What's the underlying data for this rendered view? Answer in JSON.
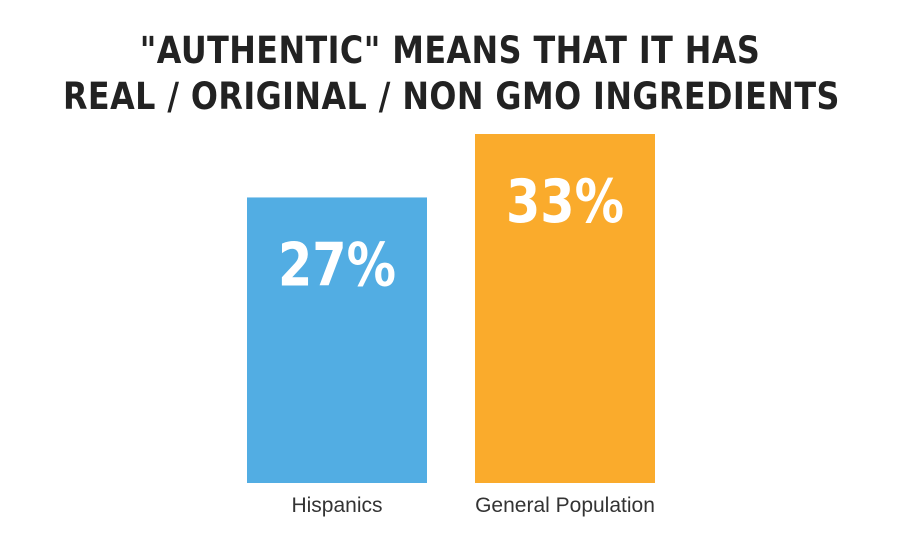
{
  "chart_data": {
    "type": "bar",
    "title_lines": [
      "\"AUTHENTIC\" MEANS THAT IT HAS",
      "REAL / ORIGINAL / NON GMO INGREDIENTS"
    ],
    "categories": [
      "Hispanics",
      "General Population"
    ],
    "values": [
      27,
      33
    ],
    "value_labels": [
      "27%",
      "33%"
    ],
    "colors": [
      "#52ade3",
      "#faab2c"
    ],
    "ylim": [
      0,
      35
    ],
    "grid": false,
    "legend": "none"
  }
}
